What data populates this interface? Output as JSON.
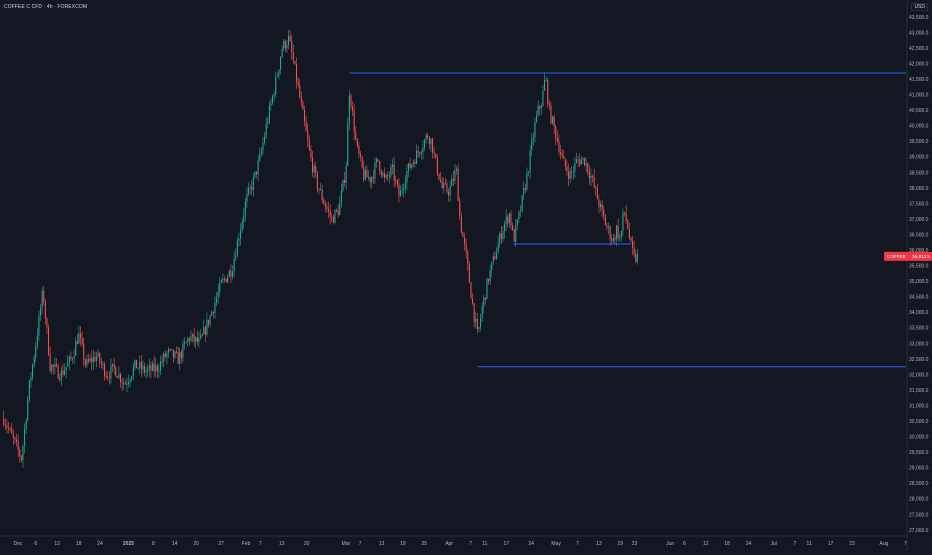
{
  "header": {
    "symbol_title": "COFFEE C CFD · 4h · FOREXCOM",
    "currency": "USD"
  },
  "colors": {
    "background": "#131722",
    "up": "#26a69a",
    "down": "#ef5350",
    "line": "#2962ff",
    "axis_text": "#b2b5be",
    "price_badge": "#f23645"
  },
  "chart_data": {
    "type": "candlestick",
    "title": "COFFEE C CFD · 4h · FOREXCOM",
    "currency": "USD",
    "y_axis": {
      "min": 27000,
      "max": 43500,
      "ticks": [
        "27,000.0",
        "27,500.0",
        "28,000.0",
        "28,500.0",
        "29,000.0",
        "29,500.0",
        "30,000.0",
        "30,500.0",
        "31,000.0",
        "31,500.0",
        "32,000.0",
        "32,500.0",
        "33,000.0",
        "33,500.0",
        "34,000.0",
        "34,500.0",
        "35,000.0",
        "35,500.0",
        "36,000.0",
        "36,500.0",
        "37,000.0",
        "37,500.0",
        "38,000.0",
        "38,500.0",
        "39,000.0",
        "39,500.0",
        "40,000.0",
        "40,500.0",
        "41,000.0",
        "41,500.0",
        "42,000.0",
        "42,500.0",
        "43,000.0",
        "43,500.0"
      ]
    },
    "x_axis": {
      "labels": [
        {
          "text": "Dec",
          "date": "2024-12-01"
        },
        {
          "text": "6",
          "date": "2024-12-06"
        },
        {
          "text": "12",
          "date": "2024-12-12"
        },
        {
          "text": "18",
          "date": "2024-12-18"
        },
        {
          "text": "24",
          "date": "2024-12-24"
        },
        {
          "text": "2025",
          "date": "2025-01-01",
          "bold": true
        },
        {
          "text": "8",
          "date": "2025-01-08"
        },
        {
          "text": "14",
          "date": "2025-01-14"
        },
        {
          "text": "20",
          "date": "2025-01-20"
        },
        {
          "text": "27",
          "date": "2025-01-27"
        },
        {
          "text": "Feb",
          "date": "2025-02-03"
        },
        {
          "text": "7",
          "date": "2025-02-07"
        },
        {
          "text": "13",
          "date": "2025-02-13"
        },
        {
          "text": "20",
          "date": "2025-02-20"
        },
        {
          "text": "Mar",
          "date": "2025-03-03"
        },
        {
          "text": "7",
          "date": "2025-03-07"
        },
        {
          "text": "13",
          "date": "2025-03-13"
        },
        {
          "text": "19",
          "date": "2025-03-19"
        },
        {
          "text": "25",
          "date": "2025-03-25"
        },
        {
          "text": "Apr",
          "date": "2025-04-01"
        },
        {
          "text": "7",
          "date": "2025-04-07"
        },
        {
          "text": "11",
          "date": "2025-04-11"
        },
        {
          "text": "17",
          "date": "2025-04-17"
        },
        {
          "text": "24",
          "date": "2025-04-24"
        },
        {
          "text": "May",
          "date": "2025-05-01"
        },
        {
          "text": "7",
          "date": "2025-05-07"
        },
        {
          "text": "13",
          "date": "2025-05-13"
        },
        {
          "text": "19",
          "date": "2025-05-19"
        },
        {
          "text": "23",
          "date": "2025-05-23"
        },
        {
          "text": "Jun",
          "date": "2025-06-02"
        },
        {
          "text": "6",
          "date": "2025-06-06"
        },
        {
          "text": "12",
          "date": "2025-06-12"
        },
        {
          "text": "18",
          "date": "2025-06-18"
        },
        {
          "text": "24",
          "date": "2025-06-24"
        },
        {
          "text": "Jul",
          "date": "2025-07-01"
        },
        {
          "text": "7",
          "date": "2025-07-07"
        },
        {
          "text": "11",
          "date": "2025-07-11"
        },
        {
          "text": "17",
          "date": "2025-07-17"
        },
        {
          "text": "23",
          "date": "2025-07-23"
        },
        {
          "text": "Aug",
          "date": "2025-08-01"
        },
        {
          "text": "7",
          "date": "2025-08-07"
        }
      ]
    },
    "price_path": [
      {
        "date": "2024-11-27",
        "price": 30600
      },
      {
        "date": "2024-12-02",
        "price": 29300
      },
      {
        "date": "2024-12-04",
        "price": 31500
      },
      {
        "date": "2024-12-06",
        "price": 33000
      },
      {
        "date": "2024-12-08",
        "price": 34700
      },
      {
        "date": "2024-12-10",
        "price": 32300
      },
      {
        "date": "2024-12-13",
        "price": 32000
      },
      {
        "date": "2024-12-16",
        "price": 32500
      },
      {
        "date": "2024-12-18",
        "price": 33300
      },
      {
        "date": "2024-12-20",
        "price": 32300
      },
      {
        "date": "2024-12-23",
        "price": 32600
      },
      {
        "date": "2024-12-26",
        "price": 32000
      },
      {
        "date": "2024-12-28",
        "price": 32200
      },
      {
        "date": "2024-12-31",
        "price": 31700
      },
      {
        "date": "2025-01-03",
        "price": 32300
      },
      {
        "date": "2025-01-06",
        "price": 32100
      },
      {
        "date": "2025-01-09",
        "price": 32200
      },
      {
        "date": "2025-01-12",
        "price": 32700
      },
      {
        "date": "2025-01-15",
        "price": 32500
      },
      {
        "date": "2025-01-18",
        "price": 33200
      },
      {
        "date": "2025-01-21",
        "price": 33000
      },
      {
        "date": "2025-01-24",
        "price": 33900
      },
      {
        "date": "2025-01-27",
        "price": 34900
      },
      {
        "date": "2025-01-30",
        "price": 35400
      },
      {
        "date": "2025-02-01",
        "price": 36500
      },
      {
        "date": "2025-02-03",
        "price": 37600
      },
      {
        "date": "2025-02-05",
        "price": 38200
      },
      {
        "date": "2025-02-07",
        "price": 39000
      },
      {
        "date": "2025-02-09",
        "price": 40200
      },
      {
        "date": "2025-02-10",
        "price": 40700
      },
      {
        "date": "2025-02-12",
        "price": 41800
      },
      {
        "date": "2025-02-13",
        "price": 42500
      },
      {
        "date": "2025-02-15",
        "price": 42800
      },
      {
        "date": "2025-02-17",
        "price": 41600
      },
      {
        "date": "2025-02-19",
        "price": 40300
      },
      {
        "date": "2025-02-21",
        "price": 39000
      },
      {
        "date": "2025-02-23",
        "price": 38100
      },
      {
        "date": "2025-02-25",
        "price": 37500
      },
      {
        "date": "2025-02-27",
        "price": 37000
      },
      {
        "date": "2025-03-01",
        "price": 37300
      },
      {
        "date": "2025-03-03",
        "price": 38600
      },
      {
        "date": "2025-03-04",
        "price": 41200
      },
      {
        "date": "2025-03-06",
        "price": 39300
      },
      {
        "date": "2025-03-08",
        "price": 38400
      },
      {
        "date": "2025-03-10",
        "price": 38300
      },
      {
        "date": "2025-03-12",
        "price": 38900
      },
      {
        "date": "2025-03-14",
        "price": 38200
      },
      {
        "date": "2025-03-16",
        "price": 38600
      },
      {
        "date": "2025-03-18",
        "price": 37700
      },
      {
        "date": "2025-03-20",
        "price": 38500
      },
      {
        "date": "2025-03-22",
        "price": 38900
      },
      {
        "date": "2025-03-24",
        "price": 39300
      },
      {
        "date": "2025-03-26",
        "price": 39700
      },
      {
        "date": "2025-03-27",
        "price": 39500
      },
      {
        "date": "2025-03-28",
        "price": 38900
      },
      {
        "date": "2025-03-30",
        "price": 38000
      },
      {
        "date": "2025-04-01",
        "price": 37900
      },
      {
        "date": "2025-04-03",
        "price": 38600
      },
      {
        "date": "2025-04-04",
        "price": 37000
      },
      {
        "date": "2025-04-06",
        "price": 35600
      },
      {
        "date": "2025-04-07",
        "price": 34700
      },
      {
        "date": "2025-04-08",
        "price": 33900
      },
      {
        "date": "2025-04-09",
        "price": 33200
      },
      {
        "date": "2025-04-10",
        "price": 34000
      },
      {
        "date": "2025-04-12",
        "price": 35100
      },
      {
        "date": "2025-04-14",
        "price": 35900
      },
      {
        "date": "2025-04-16",
        "price": 36700
      },
      {
        "date": "2025-04-18",
        "price": 37200
      },
      {
        "date": "2025-04-19",
        "price": 36300
      },
      {
        "date": "2025-04-21",
        "price": 37300
      },
      {
        "date": "2025-04-23",
        "price": 38500
      },
      {
        "date": "2025-04-25",
        "price": 40000
      },
      {
        "date": "2025-04-26",
        "price": 40500
      },
      {
        "date": "2025-04-27",
        "price": 40800
      },
      {
        "date": "2025-04-28",
        "price": 41600
      },
      {
        "date": "2025-04-29",
        "price": 40500
      },
      {
        "date": "2025-05-01",
        "price": 39700
      },
      {
        "date": "2025-05-03",
        "price": 38800
      },
      {
        "date": "2025-05-05",
        "price": 38400
      },
      {
        "date": "2025-05-07",
        "price": 38900
      },
      {
        "date": "2025-05-09",
        "price": 38900
      },
      {
        "date": "2025-05-11",
        "price": 38300
      },
      {
        "date": "2025-05-13",
        "price": 37500
      },
      {
        "date": "2025-05-15",
        "price": 36800
      },
      {
        "date": "2025-05-17",
        "price": 36300
      },
      {
        "date": "2025-05-18",
        "price": 36700
      },
      {
        "date": "2025-05-19",
        "price": 36300
      },
      {
        "date": "2025-05-20",
        "price": 37300
      },
      {
        "date": "2025-05-21",
        "price": 36800
      },
      {
        "date": "2025-05-22",
        "price": 36100
      },
      {
        "date": "2025-05-23",
        "price": 35700
      },
      {
        "date": "2025-05-24",
        "price": 35800
      }
    ],
    "horizontal_lines": [
      {
        "price": 41700,
        "from_date": "2025-03-04",
        "to_date": "2025-08-10",
        "color": "#2962ff"
      },
      {
        "price": 36200,
        "from_date": "2025-04-19",
        "to_date": "2025-05-22",
        "color": "#2962ff"
      },
      {
        "price": 32250,
        "from_date": "2025-04-09",
        "to_date": "2025-08-10",
        "color": "#2962ff"
      }
    ],
    "last_price_badge": {
      "symbol": "COFFEE",
      "price": 35800,
      "text": "35,812.5"
    },
    "grid": false
  }
}
